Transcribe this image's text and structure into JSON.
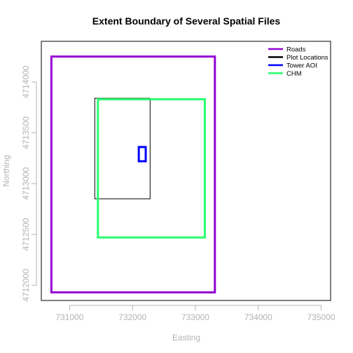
{
  "chart_data": {
    "type": "line",
    "title": "Extent Boundary of Several Spatial Files",
    "xlabel": "Easting",
    "ylabel": "Northing",
    "xlim": [
      730550,
      735150
    ],
    "ylim": [
      4711850,
      4714400
    ],
    "x_ticks": [
      {
        "value": 731000,
        "label": "731000"
      },
      {
        "value": 732000,
        "label": "732000"
      },
      {
        "value": 733000,
        "label": "733000"
      },
      {
        "value": 734000,
        "label": "734000"
      },
      {
        "value": 735000,
        "label": "735000"
      }
    ],
    "y_ticks": [
      {
        "value": 4712000,
        "label": "4712000"
      },
      {
        "value": 4712500,
        "label": "4712500"
      },
      {
        "value": 4713000,
        "label": "4713000"
      },
      {
        "value": 4713500,
        "label": "4713500"
      },
      {
        "value": 4714000,
        "label": "4714000"
      }
    ],
    "legend_position": "top-right",
    "series": [
      {
        "name": "Roads",
        "color": "#9400d3",
        "line_width": 3,
        "xmin": 730710,
        "xmax": 733310,
        "ymin": 4711930,
        "ymax": 4714250
      },
      {
        "name": "Plot Locations",
        "color": "#000000",
        "line_width": 1,
        "xmin": 731400,
        "xmax": 732280,
        "ymin": 4712850,
        "ymax": 4713840
      },
      {
        "name": "Tower AOI",
        "color": "#0000ff",
        "line_width": 3,
        "xmin": 732100,
        "xmax": 732210,
        "ymin": 4713220,
        "ymax": 4713360
      },
      {
        "name": "CHM",
        "color": "#26ff6e",
        "line_width": 3,
        "xmin": 731450,
        "xmax": 733150,
        "ymin": 4712470,
        "ymax": 4713830
      }
    ]
  }
}
